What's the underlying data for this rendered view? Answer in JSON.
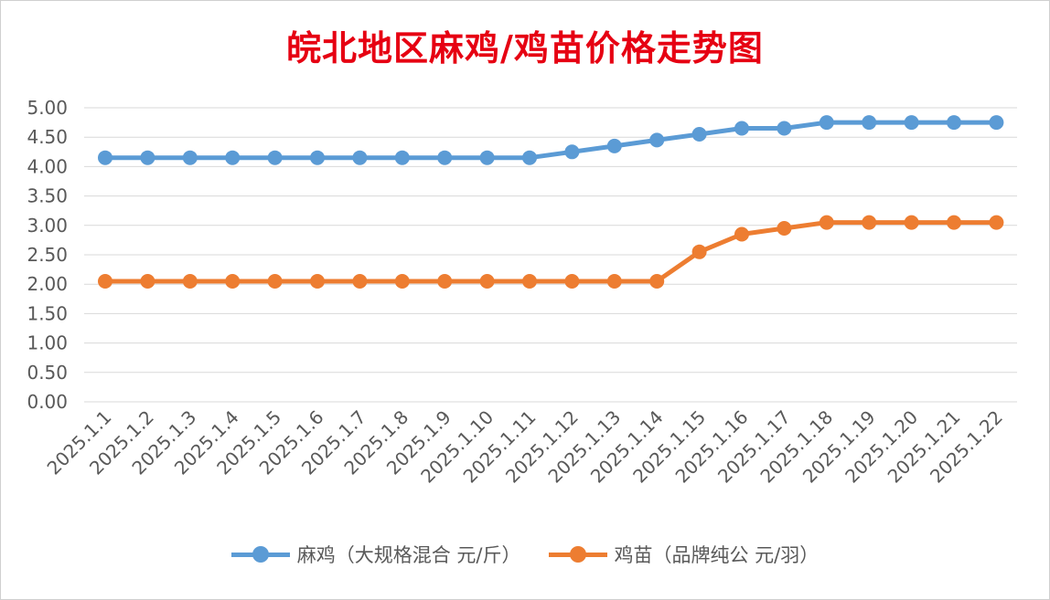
{
  "chart_data": {
    "type": "line",
    "title": "皖北地区麻鸡/鸡苗价格走势图",
    "categories": [
      "2025.1.1",
      "2025.1.2",
      "2025.1.3",
      "2025.1.4",
      "2025.1.5",
      "2025.1.6",
      "2025.1.7",
      "2025.1.8",
      "2025.1.9",
      "2025.1.10",
      "2025.1.11",
      "2025.1.12",
      "2025.1.13",
      "2025.1.14",
      "2025.1.15",
      "2025.1.16",
      "2025.1.17",
      "2025.1.18",
      "2025.1.19",
      "2025.1.20",
      "2025.1.21",
      "2025.1.22"
    ],
    "y_ticks": [
      "0.00",
      "0.50",
      "1.00",
      "1.50",
      "2.00",
      "2.50",
      "3.00",
      "3.50",
      "4.00",
      "4.50",
      "5.00"
    ],
    "ylim": [
      0,
      5
    ],
    "grid": true,
    "legend_position": "bottom",
    "series": [
      {
        "name": "麻鸡（大规格混合 元/斤）",
        "color": "#5b9bd5",
        "values": [
          4.15,
          4.15,
          4.15,
          4.15,
          4.15,
          4.15,
          4.15,
          4.15,
          4.15,
          4.15,
          4.15,
          4.25,
          4.35,
          4.45,
          4.55,
          4.65,
          4.65,
          4.75,
          4.75,
          4.75,
          4.75,
          4.75
        ]
      },
      {
        "name": "鸡苗（品牌纯公 元/羽）",
        "color": "#ed7d31",
        "values": [
          2.05,
          2.05,
          2.05,
          2.05,
          2.05,
          2.05,
          2.05,
          2.05,
          2.05,
          2.05,
          2.05,
          2.05,
          2.05,
          2.05,
          2.55,
          2.85,
          2.95,
          3.05,
          3.05,
          3.05,
          3.05,
          3.05
        ]
      }
    ]
  }
}
